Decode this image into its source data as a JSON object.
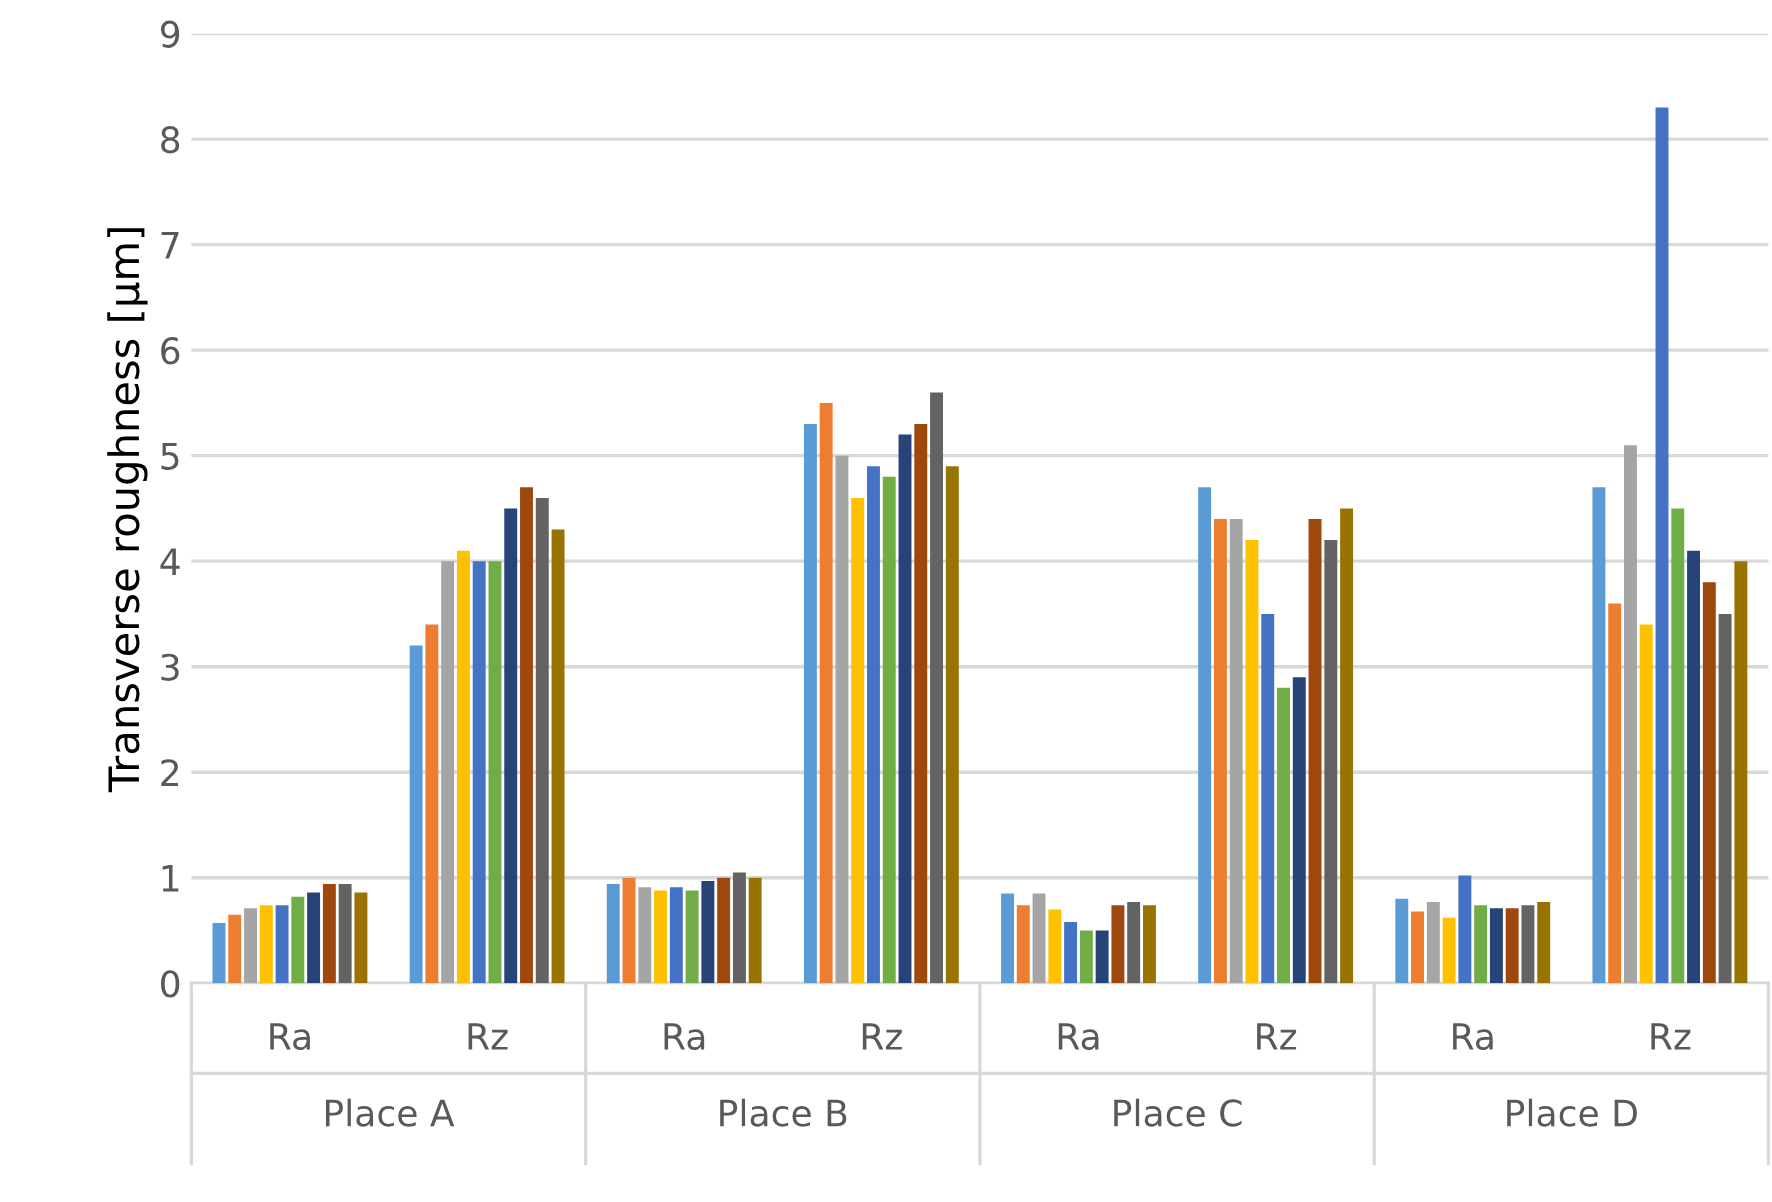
{
  "chart_data": {
    "type": "bar",
    "ylabel": "Transverse roughness [µm]",
    "categories": [
      "Ra",
      "Rz",
      "Ra",
      "Rz",
      "Ra",
      "Rz",
      "Ra",
      "Rz"
    ],
    "annotations": [
      "Place A",
      "Place B",
      "Place C",
      "Place D"
    ],
    "series": [
      {
        "color": "#5b9bd5",
        "values": [
          0.57,
          3.2,
          0.94,
          5.3,
          0.85,
          4.7,
          0.8,
          4.7
        ]
      },
      {
        "color": "#ed7d31",
        "values": [
          0.65,
          3.4,
          1.0,
          5.5,
          0.74,
          4.4,
          0.68,
          3.6
        ]
      },
      {
        "color": "#a5a5a5",
        "values": [
          0.71,
          4.0,
          0.91,
          5.0,
          0.85,
          4.4,
          0.77,
          5.1
        ]
      },
      {
        "color": "#ffc000",
        "values": [
          0.74,
          4.1,
          0.88,
          4.6,
          0.7,
          4.2,
          0.62,
          3.4
        ]
      },
      {
        "color": "#4472c4",
        "values": [
          0.74,
          4.0,
          0.91,
          4.9,
          0.58,
          3.5,
          1.02,
          8.3
        ]
      },
      {
        "color": "#70ad47",
        "values": [
          0.82,
          4.0,
          0.88,
          4.8,
          0.5,
          2.8,
          0.74,
          4.5
        ]
      },
      {
        "color": "#264478",
        "values": [
          0.86,
          4.5,
          0.97,
          5.2,
          0.5,
          2.9,
          0.71,
          4.1
        ]
      },
      {
        "color": "#9e480e",
        "values": [
          0.94,
          4.7,
          1.0,
          5.3,
          0.74,
          4.4,
          0.71,
          3.8
        ]
      },
      {
        "color": "#636363",
        "values": [
          0.94,
          4.6,
          1.05,
          5.6,
          0.77,
          4.2,
          0.74,
          3.5
        ]
      },
      {
        "color": "#997300",
        "values": [
          0.86,
          4.3,
          1.0,
          4.9,
          0.74,
          4.5,
          0.77,
          4.0
        ]
      }
    ],
    "ylim": [
      0,
      9
    ],
    "yticks": [
      0,
      1,
      2,
      3,
      4,
      5,
      6,
      7,
      8,
      9
    ],
    "grid": "y"
  }
}
